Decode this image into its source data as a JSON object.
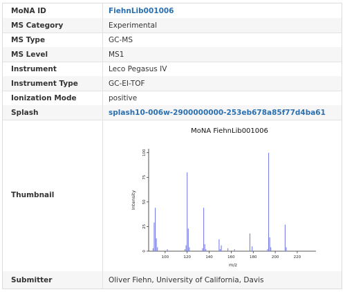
{
  "table": {
    "rows": [
      {
        "label": "MoNA ID",
        "value": "FiehnLib001006"
      },
      {
        "label": "MS Category",
        "value": "Experimental"
      },
      {
        "label": "MS Type",
        "value": "GC-MS"
      },
      {
        "label": "MS Level",
        "value": "MS1"
      },
      {
        "label": "Instrument",
        "value": "Leco Pegasus IV"
      },
      {
        "label": "Instrument Type",
        "value": "GC-EI-TOF"
      },
      {
        "label": "Ionization Mode",
        "value": "positive"
      },
      {
        "label": "Splash",
        "value": "splash10-006w-2900000000-253eb678a85f77d4ba61"
      }
    ],
    "thumbnail_label": "Thumbnail",
    "submitter_label": "Submitter",
    "submitter_value": "Oliver Fiehn, University of California, Davis"
  },
  "chart_data": {
    "type": "bar",
    "title": "MoNA FiehnLib001006",
    "xlabel": "m/z",
    "ylabel": "Intensity",
    "xlim": [
      85,
      237
    ],
    "ylim": [
      0,
      104
    ],
    "xticks": [
      100,
      120,
      140,
      160,
      180,
      200,
      220
    ],
    "yticks": [
      0,
      25,
      50,
      75,
      100
    ],
    "color": "#7b7fe0",
    "peaks": [
      {
        "x": 89,
        "y": 3
      },
      {
        "x": 90,
        "y": 29
      },
      {
        "x": 91,
        "y": 44
      },
      {
        "x": 92,
        "y": 13
      },
      {
        "x": 93,
        "y": 4
      },
      {
        "x": 102,
        "y": 2
      },
      {
        "x": 118,
        "y": 2
      },
      {
        "x": 119,
        "y": 6
      },
      {
        "x": 120,
        "y": 80
      },
      {
        "x": 121,
        "y": 23
      },
      {
        "x": 122,
        "y": 4
      },
      {
        "x": 134,
        "y": 3
      },
      {
        "x": 135,
        "y": 44
      },
      {
        "x": 136,
        "y": 7
      },
      {
        "x": 137,
        "y": 2
      },
      {
        "x": 149,
        "y": 12
      },
      {
        "x": 150,
        "y": 2
      },
      {
        "x": 151,
        "y": 6
      },
      {
        "x": 157,
        "y": 3
      },
      {
        "x": 163,
        "y": 2
      },
      {
        "x": 177,
        "y": 18
      },
      {
        "x": 179,
        "y": 5
      },
      {
        "x": 193,
        "y": 2
      },
      {
        "x": 194,
        "y": 100
      },
      {
        "x": 195,
        "y": 14
      },
      {
        "x": 196,
        "y": 4
      },
      {
        "x": 209,
        "y": 27
      },
      {
        "x": 210,
        "y": 4
      }
    ]
  }
}
